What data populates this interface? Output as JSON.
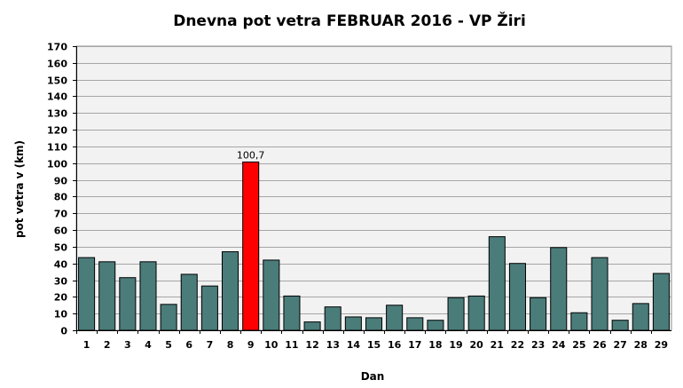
{
  "chart_data": {
    "type": "bar",
    "title": "Dnevna pot  vetra FEBRUAR 2016 - VP Žiri",
    "xlabel": "Dan",
    "ylabel": "pot vetra  v (km)",
    "ylim": [
      0,
      170
    ],
    "ytick_step": 10,
    "grid": true,
    "legend": "none",
    "categories": [
      "1",
      "2",
      "3",
      "4",
      "5",
      "6",
      "7",
      "8",
      "9",
      "10",
      "11",
      "12",
      "13",
      "14",
      "15",
      "16",
      "17",
      "18",
      "19",
      "20",
      "21",
      "22",
      "23",
      "24",
      "25",
      "26",
      "27",
      "28",
      "29"
    ],
    "values": [
      43.5,
      41,
      31.5,
      41,
      15.5,
      33.5,
      26.5,
      47,
      100.7,
      42,
      20.5,
      5,
      14,
      8,
      7.5,
      15,
      7.5,
      6,
      19.5,
      20.5,
      56,
      40,
      19.5,
      49.5,
      10.5,
      43.5,
      6,
      16,
      34
    ],
    "highlight_index": 8,
    "data_labels": [
      {
        "index": 8,
        "text": "100,7"
      }
    ],
    "colors": {
      "bar": "#4a7c7a",
      "highlight": "#ff0000",
      "plot_background": "#f2f2f2",
      "grid": "#a6a6a6"
    }
  }
}
